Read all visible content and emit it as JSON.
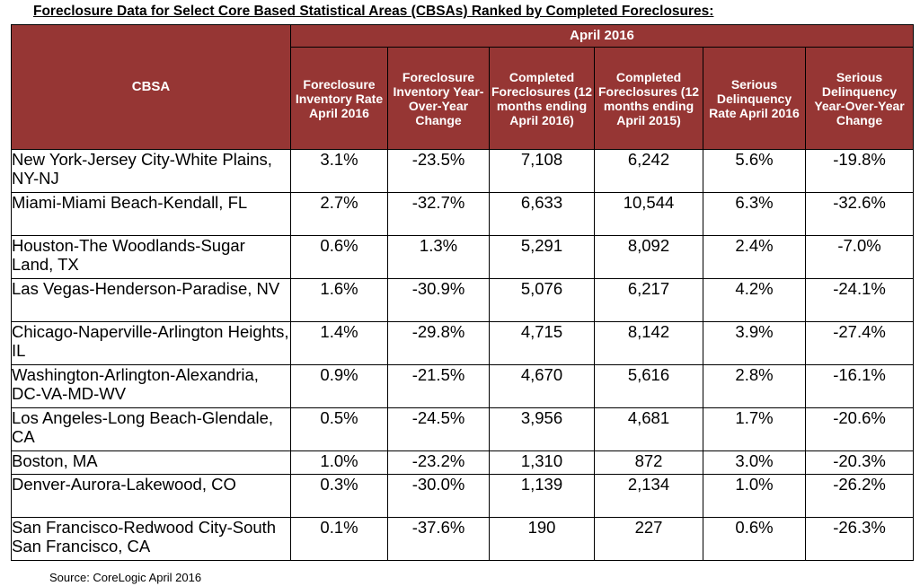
{
  "title": "Foreclosure Data for Select Core Based Statistical Areas (CBSAs) Ranked by Completed Foreclosures:",
  "table": {
    "cbsa_header": "CBSA",
    "period_header": "April 2016",
    "columns": [
      "Foreclosure Inventory Rate April 2016",
      "Foreclosure Inventory Year-Over-Year Change",
      "Completed Foreclosures (12 months ending April 2016)",
      "Completed Foreclosures (12 months ending April 2015)",
      "Serious Delinquency Rate April 2016",
      "Serious Delinquency Year-Over-Year Change"
    ],
    "rows": [
      {
        "cbsa": "New York-Jersey City-White Plains, NY-NJ",
        "inv_rate": "3.1%",
        "inv_yoy": "-23.5%",
        "fc_2016": "7,108",
        "fc_2015": "6,242",
        "sd_rate": "5.6%",
        "sd_yoy": "-19.8%"
      },
      {
        "cbsa": "Miami-Miami Beach-Kendall, FL",
        "inv_rate": "2.7%",
        "inv_yoy": "-32.7%",
        "fc_2016": "6,633",
        "fc_2015": "10,544",
        "sd_rate": "6.3%",
        "sd_yoy": "-32.6%"
      },
      {
        "cbsa": "Houston-The Woodlands-Sugar Land, TX",
        "inv_rate": "0.6%",
        "inv_yoy": "1.3%",
        "fc_2016": "5,291",
        "fc_2015": "8,092",
        "sd_rate": "2.4%",
        "sd_yoy": "-7.0%"
      },
      {
        "cbsa": "Las Vegas-Henderson-Paradise, NV",
        "inv_rate": "1.6%",
        "inv_yoy": "-30.9%",
        "fc_2016": "5,076",
        "fc_2015": "6,217",
        "sd_rate": "4.2%",
        "sd_yoy": "-24.1%"
      },
      {
        "cbsa": "Chicago-Naperville-Arlington Heights, IL",
        "inv_rate": "1.4%",
        "inv_yoy": "-29.8%",
        "fc_2016": "4,715",
        "fc_2015": "8,142",
        "sd_rate": "3.9%",
        "sd_yoy": "-27.4%"
      },
      {
        "cbsa": "Washington-Arlington-Alexandria, DC-VA-MD-WV",
        "inv_rate": "0.9%",
        "inv_yoy": "-21.5%",
        "fc_2016": "4,670",
        "fc_2015": "5,616",
        "sd_rate": "2.8%",
        "sd_yoy": "-16.1%"
      },
      {
        "cbsa": "Los Angeles-Long Beach-Glendale, CA",
        "inv_rate": "0.5%",
        "inv_yoy": "-24.5%",
        "fc_2016": "3,956",
        "fc_2015": "4,681",
        "sd_rate": "1.7%",
        "sd_yoy": "-20.6%"
      },
      {
        "cbsa": "Boston, MA",
        "inv_rate": "1.0%",
        "inv_yoy": "-23.2%",
        "fc_2016": "1,310",
        "fc_2015": "872",
        "sd_rate": "3.0%",
        "sd_yoy": "-20.3%"
      },
      {
        "cbsa": "Denver-Aurora-Lakewood, CO",
        "inv_rate": "0.3%",
        "inv_yoy": "-30.0%",
        "fc_2016": "1,139",
        "fc_2015": "2,134",
        "sd_rate": "1.0%",
        "sd_yoy": "-26.2%"
      },
      {
        "cbsa": "San Francisco-Redwood City-South San Francisco, CA",
        "inv_rate": "0.1%",
        "inv_yoy": "-37.6%",
        "fc_2016": "190",
        "fc_2015": "227",
        "sd_rate": "0.6%",
        "sd_yoy": "-26.3%"
      }
    ]
  },
  "source": "Source: CoreLogic April 2016",
  "colors": {
    "header_bg": "#963634",
    "header_text": "#ffffff"
  }
}
